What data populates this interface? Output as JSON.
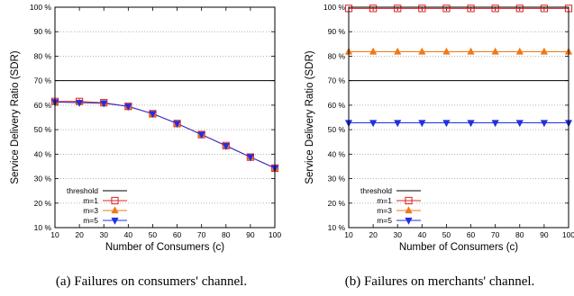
{
  "chart_data": [
    {
      "type": "line",
      "caption": "(a) Failures on consumers' channel.",
      "xlabel": "Number of Consumers (c)",
      "ylabel": "Service Delivery Ratio (SDR)",
      "x": [
        10,
        20,
        30,
        40,
        50,
        60,
        70,
        80,
        90,
        100
      ],
      "xlim": [
        10,
        100
      ],
      "ylim": [
        10,
        100
      ],
      "xticks": [
        "10",
        "20",
        "30",
        "40",
        "50",
        "60",
        "70",
        "80",
        "90",
        "100"
      ],
      "yticks": [
        "10 %",
        "20 %",
        "30 %",
        "40 %",
        "50 %",
        "60 %",
        "70 %",
        "80 %",
        "90 %",
        "100 %"
      ],
      "grid": "horizontal dotted",
      "legend_position": "bottom-left",
      "threshold": {
        "name": "threshold",
        "value": 70,
        "color": "#000000"
      },
      "series": [
        {
          "name": "m=1",
          "marker": "square",
          "color": "#e02020",
          "values": [
            61.5,
            61.5,
            61.0,
            59.5,
            56.5,
            52.5,
            48.0,
            43.5,
            38.8,
            34.3
          ]
        },
        {
          "name": "m=3",
          "marker": "triangle-up",
          "color": "#f07818",
          "values": [
            61.3,
            61.2,
            60.9,
            59.5,
            56.5,
            52.5,
            48.0,
            43.4,
            38.8,
            34.3
          ]
        },
        {
          "name": "m=5",
          "marker": "triangle-down",
          "color": "#2030e0",
          "values": [
            61.3,
            61.0,
            60.8,
            59.5,
            56.5,
            52.5,
            48.0,
            43.4,
            38.8,
            34.3
          ]
        }
      ]
    },
    {
      "type": "line",
      "caption": "(b) Failures on merchants' channel.",
      "xlabel": "Number of Consumers (c)",
      "ylabel": "Service Delivery Ratio (SDR)",
      "x": [
        10,
        20,
        30,
        40,
        50,
        60,
        70,
        80,
        90,
        100
      ],
      "xlim": [
        10,
        100
      ],
      "ylim": [
        10,
        100
      ],
      "xticks": [
        "10",
        "20",
        "30",
        "40",
        "50",
        "60",
        "70",
        "80",
        "90",
        "100"
      ],
      "yticks": [
        "10 %",
        "20 %",
        "30 %",
        "40 %",
        "50 %",
        "60 %",
        "70 %",
        "80 %",
        "90 %",
        "100 %"
      ],
      "grid": "horizontal dotted",
      "legend_position": "bottom-left",
      "threshold": {
        "name": "threshold",
        "value": 70,
        "color": "#000000"
      },
      "series": [
        {
          "name": "m=1",
          "marker": "square",
          "color": "#e02020",
          "values": [
            99.5,
            99.5,
            99.5,
            99.5,
            99.5,
            99.5,
            99.5,
            99.5,
            99.5,
            99.5
          ]
        },
        {
          "name": "m=3",
          "marker": "triangle-up",
          "color": "#f07818",
          "values": [
            81.8,
            81.8,
            81.8,
            81.8,
            81.8,
            81.8,
            81.8,
            81.8,
            81.8,
            81.8
          ]
        },
        {
          "name": "m=5",
          "marker": "triangle-down",
          "color": "#2030e0",
          "values": [
            52.8,
            52.8,
            52.8,
            52.8,
            52.8,
            52.8,
            52.8,
            52.8,
            52.8,
            52.8
          ]
        }
      ]
    }
  ]
}
